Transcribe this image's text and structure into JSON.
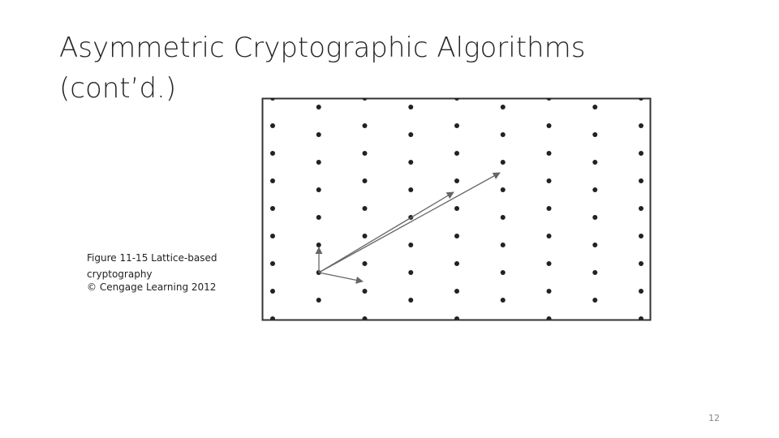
{
  "slide": {
    "title": [
      "Asymmetric Cryptographic Algorithms",
      "(cont’d.)"
    ],
    "caption": [
      "Figure 11-15 Lattice-based",
      "cryptography",
      "© Cengage Learning 2012"
    ],
    "page_number": "12"
  }
}
